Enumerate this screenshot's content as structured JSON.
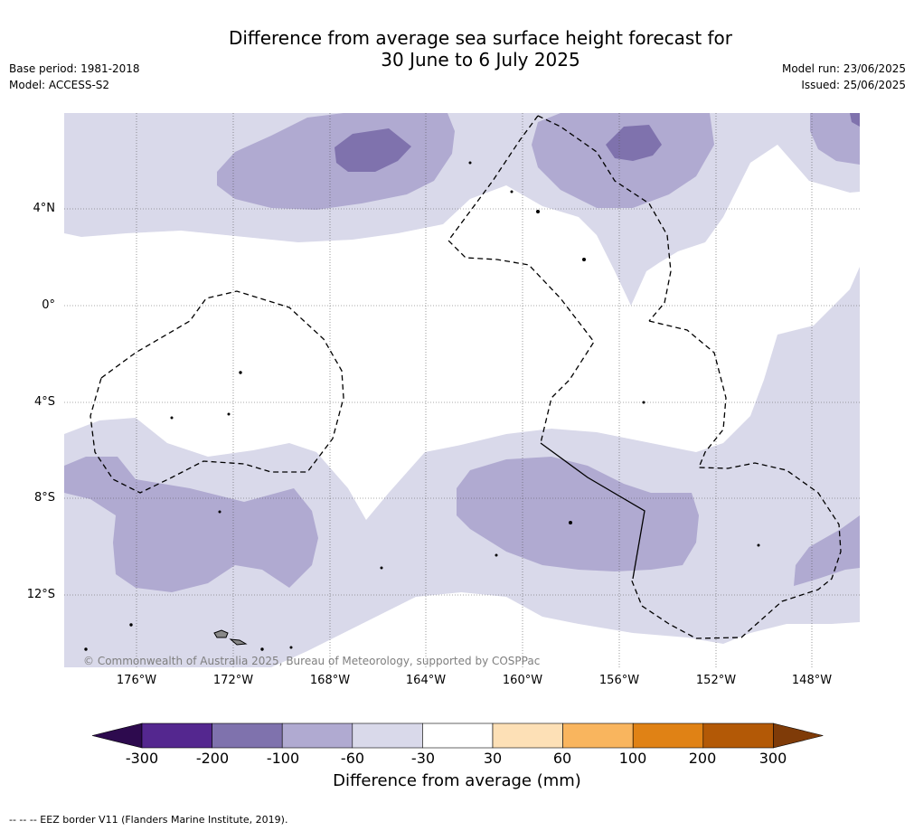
{
  "title": {
    "line1": "Difference from average sea surface height forecast for",
    "line2": "30 June to 6 July 2025"
  },
  "meta": {
    "base_period": "Base period: 1981-2018",
    "model": "Model: ACCESS-S2",
    "model_run": "Model run: 23/06/2025",
    "issued": "Issued: 25/06/2025"
  },
  "map": {
    "lat_labels": [
      "4°N",
      "0°",
      "4°S",
      "8°S",
      "12°S"
    ],
    "lon_labels": [
      "176°W",
      "172°W",
      "168°W",
      "164°W",
      "160°W",
      "156°W",
      "152°W",
      "148°W"
    ],
    "copyright": "© Commonwealth of Australia 2025, Bureau of Meteorology, supported by COSPPac"
  },
  "colorbar": {
    "ticks": [
      "-300",
      "-200",
      "-100",
      "-60",
      "-30",
      "30",
      "60",
      "100",
      "200",
      "300"
    ],
    "colors": [
      "#2d0a4e",
      "#54278f",
      "#7f72ad",
      "#b0aad1",
      "#d9d9ea",
      "#ffffff",
      "#fde0b6",
      "#f9b55e",
      "#e08215",
      "#b35906",
      "#7f3b08"
    ],
    "label": "Difference from average (mm)"
  },
  "footnote": "--  --  -- EEZ border V11 (Flanders Marine Institute, 2019)."
}
